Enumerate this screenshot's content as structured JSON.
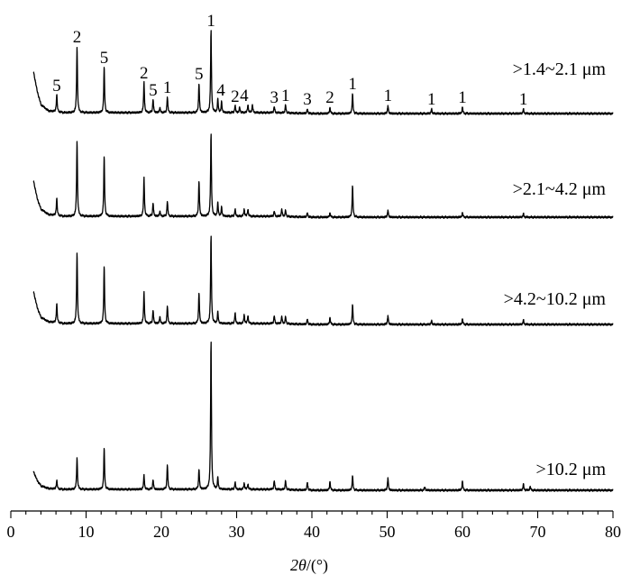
{
  "chart_data": {
    "type": "line",
    "xlabel_parts": {
      "var": "2θ",
      "unit": "/(°)"
    },
    "xlim": [
      0,
      80
    ],
    "x_ticks": [
      0,
      10,
      20,
      30,
      40,
      50,
      60,
      70,
      80
    ],
    "yaxis": "none",
    "grid": false,
    "base_x": [
      3.0,
      3.5,
      4.0,
      5.0,
      7.0,
      10.0,
      15.0,
      20.0,
      25.0,
      30.0,
      35.0,
      40.0,
      45.0,
      50.0,
      55.0,
      60.0,
      65.0,
      70.0,
      75.0,
      80.0
    ],
    "series": [
      {
        "name": ">1.4~2.1 μm",
        "baseline": [
          48,
          26,
          11,
          4,
          2,
          2,
          2,
          2,
          2,
          2,
          2,
          1,
          1,
          1,
          1,
          1,
          1,
          1,
          1,
          1
        ],
        "peaks": [
          [
            6.1,
            20
          ],
          [
            8.8,
            74
          ],
          [
            12.4,
            51
          ],
          [
            17.7,
            34
          ],
          [
            18.9,
            15
          ],
          [
            19.8,
            6
          ],
          [
            20.8,
            18
          ],
          [
            25.0,
            33
          ],
          [
            26.6,
            92
          ],
          [
            27.5,
            15
          ],
          [
            28.0,
            12
          ],
          [
            29.8,
            8
          ],
          [
            30.4,
            6
          ],
          [
            31.5,
            9
          ],
          [
            32.1,
            9
          ],
          [
            35.0,
            7
          ],
          [
            36.5,
            9
          ],
          [
            39.4,
            5
          ],
          [
            42.4,
            7
          ],
          [
            45.4,
            22
          ],
          [
            50.1,
            9
          ],
          [
            55.9,
            5
          ],
          [
            60.0,
            7
          ],
          [
            68.1,
            5
          ]
        ]
      },
      {
        "name": ">2.1~4.2 μm",
        "baseline": [
          42,
          22,
          10,
          4,
          2,
          2,
          2,
          2,
          2,
          2,
          2,
          1,
          1,
          1,
          1,
          1,
          1,
          1,
          1,
          1
        ],
        "peaks": [
          [
            6.1,
            20
          ],
          [
            8.8,
            85
          ],
          [
            12.4,
            67
          ],
          [
            17.7,
            43
          ],
          [
            18.9,
            15
          ],
          [
            19.8,
            6
          ],
          [
            20.8,
            17
          ],
          [
            25.0,
            40
          ],
          [
            26.6,
            92
          ],
          [
            27.5,
            15
          ],
          [
            28.0,
            10
          ],
          [
            29.8,
            8
          ],
          [
            31.0,
            8
          ],
          [
            31.5,
            8
          ],
          [
            35.0,
            6
          ],
          [
            36.0,
            8
          ],
          [
            36.5,
            7
          ],
          [
            39.4,
            5
          ],
          [
            42.4,
            5
          ],
          [
            45.4,
            35
          ],
          [
            50.1,
            8
          ],
          [
            60.0,
            5
          ],
          [
            68.1,
            4
          ]
        ]
      },
      {
        "name": ">4.2~10.2 μm",
        "baseline": [
          38,
          20,
          9,
          4,
          2,
          2,
          2,
          2,
          2,
          2,
          2,
          1,
          1,
          1,
          1,
          1,
          1,
          1,
          1,
          1
        ],
        "peaks": [
          [
            6.1,
            22
          ],
          [
            8.8,
            80
          ],
          [
            12.4,
            64
          ],
          [
            17.7,
            35
          ],
          [
            18.9,
            15
          ],
          [
            19.8,
            8
          ],
          [
            20.8,
            20
          ],
          [
            25.0,
            35
          ],
          [
            26.6,
            98
          ],
          [
            27.5,
            13
          ],
          [
            29.8,
            12
          ],
          [
            31.0,
            10
          ],
          [
            31.5,
            9
          ],
          [
            35.0,
            9
          ],
          [
            36.0,
            8
          ],
          [
            36.5,
            8
          ],
          [
            39.4,
            6
          ],
          [
            42.4,
            8
          ],
          [
            45.4,
            22
          ],
          [
            50.1,
            10
          ],
          [
            55.9,
            4
          ],
          [
            60.0,
            6
          ],
          [
            68.1,
            5
          ]
        ]
      },
      {
        "name": ">10.2 μm",
        "baseline": [
          22,
          12,
          6,
          3,
          2,
          2,
          2,
          2,
          2,
          2,
          2,
          1,
          1,
          1,
          1,
          1,
          1,
          1,
          1,
          1
        ],
        "peaks": [
          [
            6.1,
            10
          ],
          [
            8.8,
            36
          ],
          [
            12.4,
            46
          ],
          [
            17.7,
            16
          ],
          [
            18.9,
            11
          ],
          [
            20.8,
            28
          ],
          [
            25.0,
            23
          ],
          [
            26.6,
            166
          ],
          [
            27.5,
            13
          ],
          [
            29.8,
            8
          ],
          [
            31.0,
            7
          ],
          [
            31.5,
            6
          ],
          [
            35.0,
            10
          ],
          [
            36.5,
            10
          ],
          [
            39.4,
            9
          ],
          [
            42.4,
            10
          ],
          [
            45.4,
            16
          ],
          [
            50.1,
            14
          ],
          [
            55.0,
            4
          ],
          [
            60.0,
            10
          ],
          [
            68.1,
            7
          ],
          [
            69.0,
            4
          ]
        ]
      }
    ],
    "peak_labels": [
      {
        "text": "5",
        "x": 6.1
      },
      {
        "text": "2",
        "x": 8.8
      },
      {
        "text": "5",
        "x": 12.4
      },
      {
        "text": "2",
        "x": 17.7
      },
      {
        "text": "5",
        "x": 18.9
      },
      {
        "text": "1",
        "x": 20.8
      },
      {
        "text": "5",
        "x": 25.0
      },
      {
        "text": "1",
        "x": 26.6
      },
      {
        "text": "4",
        "x": 27.9
      },
      {
        "text": "2",
        "x": 29.8
      },
      {
        "text": "4",
        "x": 31.0
      },
      {
        "text": "3",
        "x": 35.0
      },
      {
        "text": "1",
        "x": 36.5
      },
      {
        "text": "3",
        "x": 39.4
      },
      {
        "text": "2",
        "x": 42.4
      },
      {
        "text": "1",
        "x": 45.4
      },
      {
        "text": "1",
        "x": 50.1
      },
      {
        "text": "1",
        "x": 55.9
      },
      {
        "text": "1",
        "x": 60.0
      },
      {
        "text": "1",
        "x": 68.1
      }
    ]
  }
}
